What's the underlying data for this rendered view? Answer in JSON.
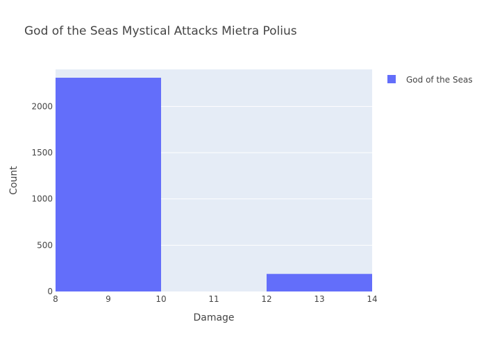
{
  "chart_data": {
    "type": "bar",
    "title": "God of the Seas Mystical Attacks Mietra Polius",
    "xlabel": "Damage",
    "ylabel": "Count",
    "xlim": [
      8,
      14
    ],
    "ylim": [
      0,
      2400
    ],
    "x_ticks": [
      "8",
      "9",
      "10",
      "11",
      "12",
      "13",
      "14"
    ],
    "y_ticks": [
      "0",
      "500",
      "1000",
      "1500",
      "2000"
    ],
    "bins": [
      {
        "x0": 8,
        "x1": 10,
        "value": 2310
      },
      {
        "x0": 10,
        "x1": 12,
        "value": 0
      },
      {
        "x0": 12,
        "x1": 14,
        "value": 190
      }
    ],
    "series": [
      {
        "name": "God of the Seas",
        "color": "#636efa"
      }
    ],
    "legend_position": "top-right",
    "grid": true,
    "plot_bg": "#e5ecf6"
  }
}
